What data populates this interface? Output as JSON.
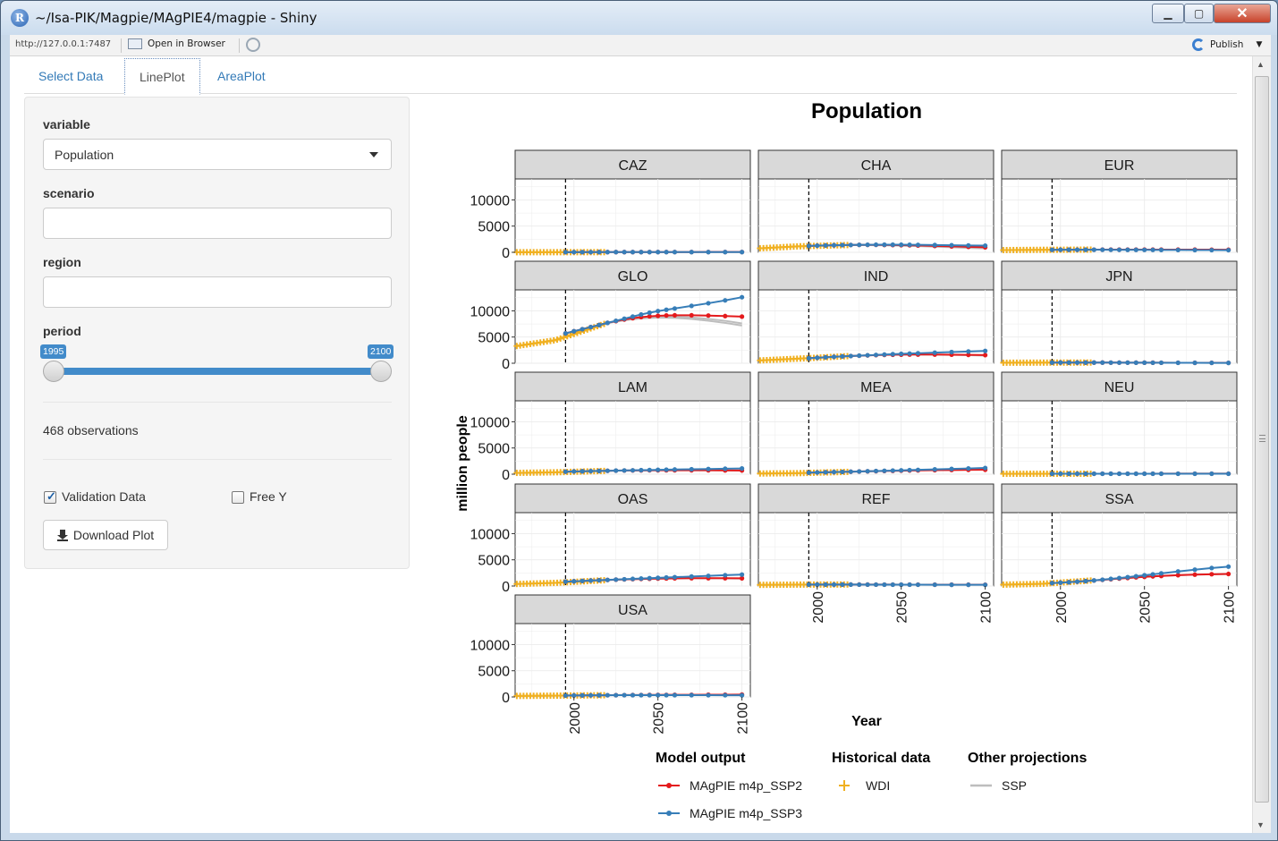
{
  "window": {
    "title": "~/Isa-PIK/Magpie/MAgPIE4/magpie - Shiny",
    "url": "http://127.0.0.1:7487",
    "open_in_browser": "Open in Browser",
    "publish": "Publish",
    "app_icon_letter": "R",
    "close_glyph": "✕",
    "max_glyph": "▢",
    "min_glyph": "▁"
  },
  "tabs": [
    {
      "label": "Select Data"
    },
    {
      "label": "LinePlot"
    },
    {
      "label": "AreaPlot"
    }
  ],
  "sidebar": {
    "variable_label": "variable",
    "variable_value": "Population",
    "scenario_label": "scenario",
    "scenario_value": "",
    "region_label": "region",
    "region_value": "",
    "period_label": "period",
    "period_min": "1995",
    "period_max": "2100",
    "observations": "468 observations",
    "validation_label": "Validation Data",
    "validation_checked": true,
    "freey_label": "Free Y",
    "freey_checked": false,
    "download_label": "Download Plot"
  },
  "colors": {
    "ssp2": "#e41a1c",
    "ssp3": "#377eb8",
    "wdi": "#f0b020",
    "ssp": "#bdbdbd",
    "strip": "#d9d9d9",
    "accent": "#428bca"
  },
  "chart_data": {
    "type": "line",
    "title": "Population",
    "xlabel": "Year",
    "ylabel": "million people",
    "xlim": [
      1965,
      2105
    ],
    "ylim": [
      0,
      14000
    ],
    "xticks": [
      2000,
      2050,
      2100
    ],
    "yticks": [
      0,
      5000,
      10000
    ],
    "reference_line_x": 1995,
    "grid": true,
    "facets": [
      "CAZ",
      "CHA",
      "EUR",
      "GLO",
      "IND",
      "JPN",
      "LAM",
      "MEA",
      "NEU",
      "OAS",
      "REF",
      "SSA",
      "USA"
    ],
    "legend": {
      "placement": "bottom",
      "groups": [
        {
          "title": "Model output",
          "entries": [
            {
              "name": "MAgPIE m4p_SSP2",
              "key": "ssp2",
              "glyph": "line-point"
            },
            {
              "name": "MAgPIE m4p_SSP3",
              "key": "ssp3",
              "glyph": "line-point"
            }
          ]
        },
        {
          "title": "Historical data",
          "entries": [
            {
              "name": "WDI",
              "key": "wdi",
              "glyph": "plus"
            }
          ]
        },
        {
          "title": "Other projections",
          "entries": [
            {
              "name": "SSP",
              "key": "ssp",
              "glyph": "line"
            }
          ]
        }
      ]
    },
    "model_years": [
      1995,
      2000,
      2005,
      2010,
      2015,
      2020,
      2025,
      2030,
      2035,
      2040,
      2045,
      2050,
      2055,
      2060,
      2070,
      2080,
      2090,
      2100
    ],
    "wdi_years": [
      1960,
      1962,
      1964,
      1966,
      1968,
      1970,
      1972,
      1974,
      1976,
      1978,
      1980,
      1982,
      1984,
      1986,
      1988,
      1990,
      1992,
      1994,
      1996,
      1998,
      2000,
      2002,
      2004,
      2006,
      2008,
      2010,
      2012,
      2014,
      2016,
      2018
    ],
    "ssp_years": [
      2010,
      2020,
      2030,
      2040,
      2050,
      2060,
      2070,
      2080,
      2090,
      2100
    ],
    "series": {
      "CAZ": {
        "ssp2": [
          29,
          31,
          33,
          35,
          37,
          39,
          41,
          43,
          45,
          47,
          48,
          49,
          50,
          51,
          53,
          55,
          56,
          57
        ],
        "ssp3": [
          29,
          31,
          33,
          35,
          37,
          38,
          39,
          40,
          41,
          41,
          42,
          42,
          42,
          42,
          42,
          42,
          41,
          40
        ],
        "wdi": [
          18,
          22,
          30
        ],
        "ssp": [
          [
            34,
            38,
            42,
            46,
            49,
            52,
            54,
            56,
            57,
            58
          ]
        ]
      },
      "CHA": {
        "ssp2": [
          1220,
          1270,
          1310,
          1345,
          1375,
          1400,
          1415,
          1420,
          1415,
          1405,
          1390,
          1365,
          1335,
          1300,
          1220,
          1130,
          1040,
          950
        ],
        "ssp3": [
          1220,
          1270,
          1310,
          1345,
          1375,
          1400,
          1420,
          1435,
          1445,
          1450,
          1450,
          1445,
          1435,
          1420,
          1390,
          1350,
          1310,
          1270
        ],
        "wdi": [
          660,
          1140,
          1380
        ],
        "ssp": [
          [
            1345,
            1390,
            1400,
            1380,
            1330,
            1260,
            1170,
            1080,
            990,
            900
          ],
          [
            1345,
            1380,
            1370,
            1330,
            1260,
            1170,
            1060,
            950,
            840,
            740
          ]
        ]
      },
      "EUR": {
        "ssp2": [
          480,
          485,
          490,
          495,
          500,
          505,
          508,
          510,
          512,
          513,
          514,
          515,
          515,
          515,
          513,
          510,
          505,
          500
        ],
        "ssp3": [
          480,
          485,
          488,
          490,
          490,
          488,
          485,
          480,
          475,
          470,
          465,
          460,
          455,
          450,
          440,
          430,
          420,
          410
        ],
        "wdi": [
          410,
          470,
          510
        ],
        "ssp": [
          [
            495,
            505,
            510,
            512,
            512,
            510,
            506,
            500,
            494,
            488
          ]
        ]
      },
      "GLO": {
        "ssp2": [
          5700,
          6100,
          6500,
          6900,
          7300,
          7700,
          8050,
          8350,
          8600,
          8800,
          8950,
          9050,
          9120,
          9150,
          9150,
          9100,
          9000,
          8900
        ],
        "ssp3": [
          5700,
          6100,
          6500,
          6900,
          7300,
          7700,
          8100,
          8500,
          8900,
          9300,
          9650,
          9950,
          10200,
          10450,
          10950,
          11450,
          12000,
          12600
        ],
        "wdi": [
          3000,
          4400,
          7500
        ],
        "ssp": [
          [
            6900,
            7700,
            8300,
            8700,
            8900,
            8900,
            8750,
            8450,
            8100,
            7600
          ],
          [
            6900,
            7650,
            8200,
            8550,
            8700,
            8650,
            8450,
            8100,
            7700,
            7200
          ]
        ]
      },
      "IND": {
        "ssp2": [
          960,
          1050,
          1140,
          1230,
          1310,
          1380,
          1440,
          1500,
          1550,
          1590,
          1620,
          1640,
          1655,
          1660,
          1655,
          1630,
          1590,
          1550
        ],
        "ssp3": [
          960,
          1050,
          1140,
          1230,
          1310,
          1380,
          1450,
          1520,
          1590,
          1660,
          1730,
          1790,
          1850,
          1910,
          2020,
          2130,
          2240,
          2350
        ],
        "wdi": [
          450,
          880,
          1350
        ],
        "ssp": [
          [
            1230,
            1380,
            1500,
            1590,
            1640,
            1650,
            1630,
            1590,
            1530,
            1460
          ]
        ]
      },
      "JPN": {
        "ssp2": [
          125,
          126,
          127,
          127,
          127,
          126,
          124,
          121,
          118,
          115,
          112,
          108,
          104,
          100,
          93,
          86,
          80,
          75
        ],
        "ssp3": [
          125,
          126,
          127,
          127,
          127,
          126,
          123,
          120,
          116,
          112,
          108,
          103,
          99,
          95,
          87,
          80,
          73,
          67
        ],
        "wdi": [
          94,
          118,
          127
        ],
        "ssp": [
          [
            127,
            126,
            121,
            115,
            108,
            100,
            92,
            85,
            79,
            74
          ]
        ]
      },
      "LAM": {
        "ssp2": [
          480,
          520,
          555,
          590,
          620,
          650,
          675,
          695,
          712,
          725,
          735,
          742,
          746,
          748,
          746,
          738,
          725,
          710
        ],
        "ssp3": [
          480,
          520,
          555,
          590,
          620,
          650,
          680,
          710,
          740,
          770,
          800,
          830,
          860,
          890,
          940,
          990,
          1040,
          1090
        ],
        "wdi": [
          220,
          360,
          620
        ],
        "ssp": [
          [
            590,
            650,
            700,
            735,
            752,
            755,
            745,
            725,
            700,
            670
          ]
        ]
      },
      "MEA": {
        "ssp2": [
          300,
          335,
          370,
          405,
          440,
          475,
          510,
          545,
          578,
          610,
          640,
          668,
          695,
          720,
          765,
          800,
          830,
          855
        ],
        "ssp3": [
          300,
          335,
          370,
          405,
          440,
          478,
          518,
          560,
          602,
          645,
          690,
          735,
          780,
          825,
          915,
          1005,
          1095,
          1185
        ],
        "wdi": [
          110,
          200,
          440
        ],
        "ssp": [
          [
            405,
            475,
            545,
            610,
            665,
            715,
            760,
            795,
            825,
            850
          ]
        ]
      },
      "NEU": {
        "ssp2": [
          85,
          86,
          87,
          88,
          89,
          90,
          91,
          92,
          93,
          94,
          95,
          96,
          96,
          97,
          97,
          98,
          98,
          98
        ],
        "ssp3": [
          85,
          86,
          87,
          88,
          88,
          88,
          88,
          87,
          87,
          86,
          86,
          85,
          85,
          84,
          83,
          82,
          81,
          80
        ],
        "wdi": [
          75,
          80,
          88
        ],
        "ssp": [
          [
            88,
            90,
            92,
            94,
            95,
            96,
            97,
            97,
            98,
            98
          ]
        ]
      },
      "OAS": {
        "ssp2": [
          830,
          900,
          970,
          1040,
          1100,
          1160,
          1215,
          1265,
          1310,
          1350,
          1385,
          1415,
          1440,
          1460,
          1485,
          1495,
          1490,
          1475
        ],
        "ssp3": [
          830,
          900,
          970,
          1040,
          1100,
          1165,
          1230,
          1295,
          1360,
          1425,
          1490,
          1555,
          1620,
          1685,
          1810,
          1935,
          2060,
          2180
        ],
        "wdi": [
          340,
          600,
          1100
        ],
        "ssp": [
          [
            1040,
            1160,
            1265,
            1350,
            1415,
            1455,
            1470,
            1465,
            1445,
            1410
          ]
        ]
      },
      "REF": {
        "ssp2": [
          280,
          278,
          276,
          275,
          275,
          274,
          273,
          272,
          271,
          270,
          268,
          266,
          264,
          262,
          258,
          254,
          250,
          246
        ],
        "ssp3": [
          280,
          278,
          276,
          275,
          274,
          272,
          269,
          266,
          263,
          260,
          257,
          254,
          251,
          248,
          242,
          236,
          230,
          225
        ],
        "wdi": [
          210,
          270,
          290
        ],
        "ssp": [
          [
            275,
            274,
            272,
            269,
            266,
            262,
            258,
            254,
            250,
            246
          ]
        ]
      },
      "SSA": {
        "ssp2": [
          560,
          640,
          730,
          830,
          940,
          1060,
          1180,
          1300,
          1420,
          1540,
          1650,
          1750,
          1840,
          1920,
          2060,
          2170,
          2250,
          2300
        ],
        "ssp3": [
          560,
          640,
          730,
          830,
          940,
          1070,
          1210,
          1360,
          1520,
          1690,
          1870,
          2050,
          2230,
          2420,
          2780,
          3120,
          3430,
          3700
        ],
        "wdi": [
          220,
          420,
          1050
        ],
        "ssp": [
          [
            830,
            1060,
            1300,
            1540,
            1750,
            1930,
            2070,
            2170,
            2240,
            2280
          ]
        ]
      },
      "USA": {
        "ssp2": [
          270,
          285,
          298,
          310,
          322,
          333,
          344,
          354,
          363,
          372,
          380,
          388,
          395,
          402,
          415,
          427,
          437,
          447
        ],
        "ssp3": [
          270,
          285,
          298,
          310,
          320,
          328,
          334,
          338,
          341,
          343,
          344,
          344,
          343,
          342,
          338,
          333,
          327,
          321
        ],
        "wdi": [
          180,
          250,
          325
        ],
        "ssp": [
          [
            310,
            333,
            354,
            372,
            388,
            402,
            415,
            427,
            437,
            447
          ]
        ]
      }
    }
  }
}
